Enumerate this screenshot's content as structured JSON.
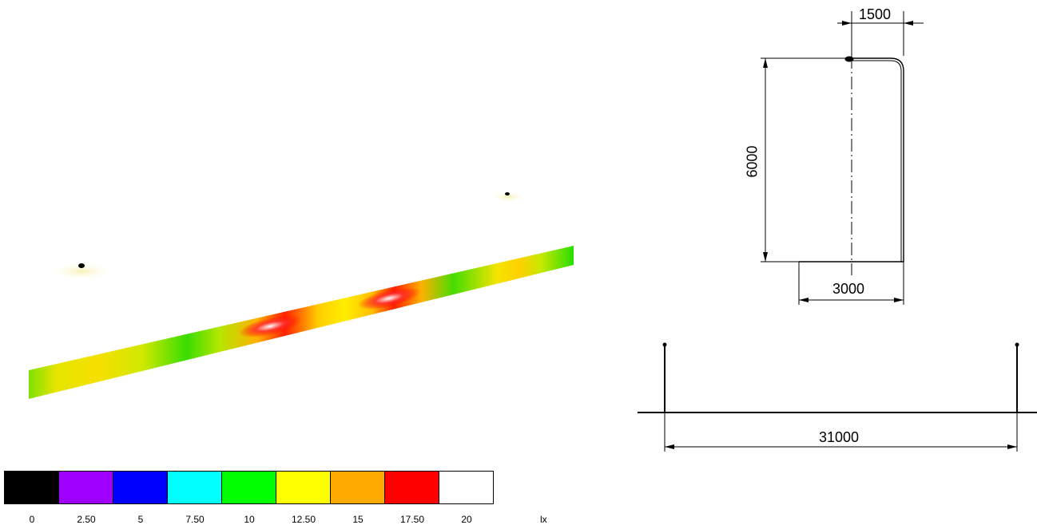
{
  "legend": {
    "unit": "lx",
    "colors": [
      "#000000",
      "#a000ff",
      "#0000ff",
      "#00ffff",
      "#00ff00",
      "#ffff00",
      "#ffaa00",
      "#ff0000",
      "#ffffff"
    ],
    "labels": [
      "0",
      "2.50",
      "5",
      "7.50",
      "10",
      "12.50",
      "15",
      "17.50",
      "20"
    ]
  },
  "dimensions": {
    "arm_overhang": "1500",
    "pole_height": "6000",
    "setback": "3000",
    "pole_spacing": "31000"
  }
}
